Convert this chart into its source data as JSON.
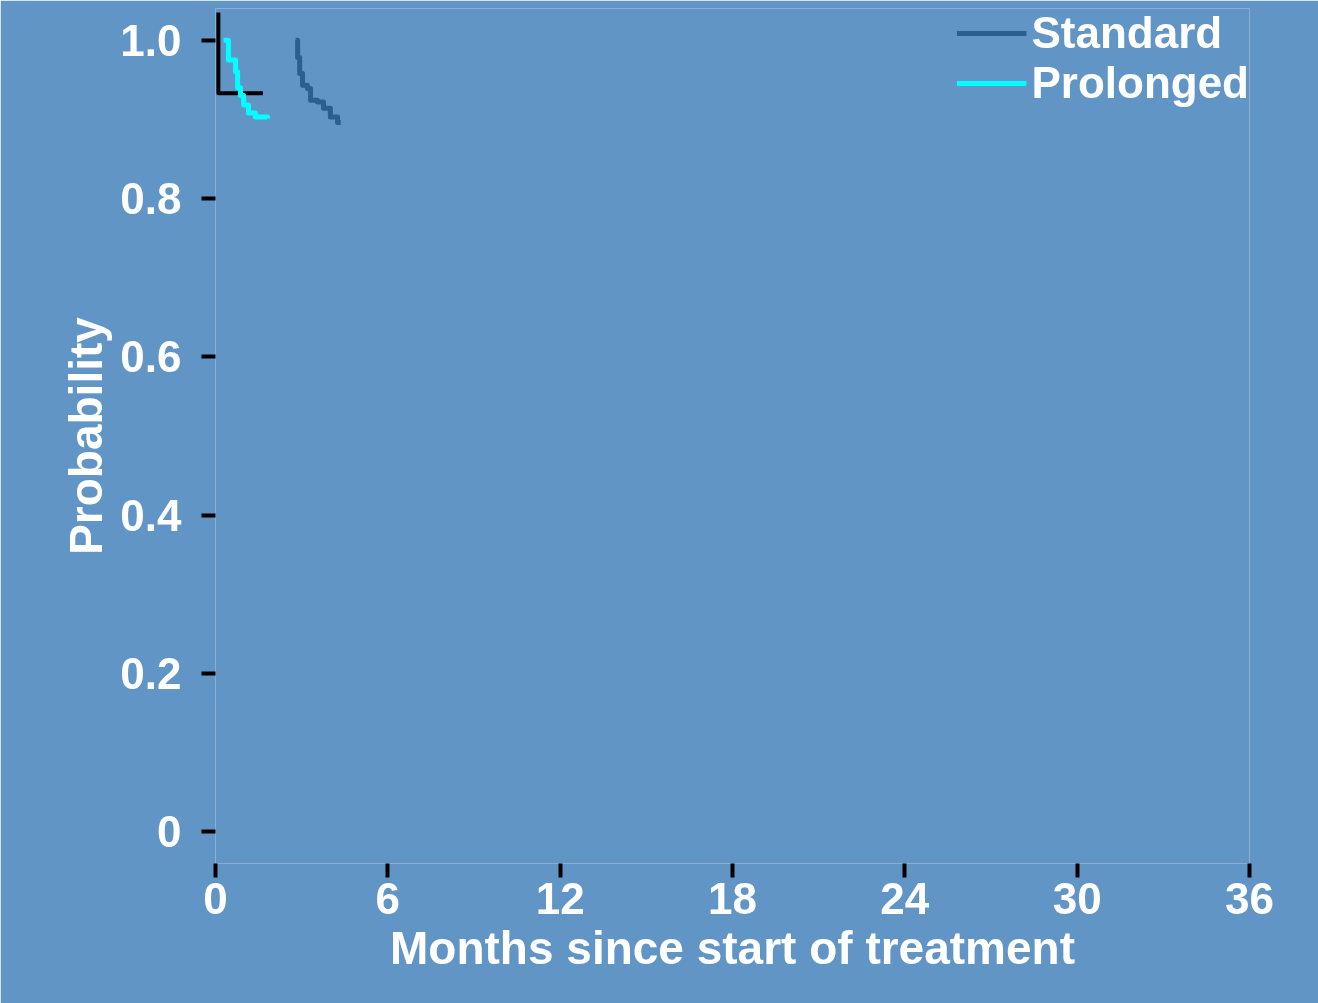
{
  "chart_data": {
    "type": "step",
    "xlabel": "Months since start of treatment",
    "ylabel": "Probability",
    "xlim": [
      0,
      36
    ],
    "xticks": [
      0,
      6,
      12,
      18,
      24,
      30,
      36
    ],
    "ylim": [
      -0.04,
      1.04
    ],
    "yticks": [
      {
        "value": 0,
        "label": "0"
      },
      0.2,
      0.4,
      0.6,
      0.8,
      {
        "value": 1,
        "label": "1.0"
      }
    ],
    "grid": false,
    "legend": "top right",
    "marker": "none",
    "line_style": "solid",
    "series": [
      {
        "name": "Standard",
        "color": "#2a5f8f",
        "x": [
          2.79,
          2.86,
          2.93,
          3.03,
          3.2,
          3.31,
          3.55,
          3.76,
          4.0,
          4.25,
          4.36
        ],
        "values": [
          1.0,
          0.978,
          0.958,
          0.943,
          0.939,
          0.924,
          0.922,
          0.914,
          0.903,
          0.896,
          0.896
        ]
      },
      {
        "type": "line",
        "color": "#000000",
        "x": [
          0.1,
          0.1,
          1.65
        ],
        "values": [
          1.035,
          0.933,
          0.933
        ]
      },
      {
        "name": "Prolonged",
        "color": "#00ffff",
        "x": [
          0.28,
          0.45,
          0.7,
          0.77,
          0.87,
          0.98,
          1.15,
          1.39,
          1.81
        ],
        "values": [
          1.0,
          0.975,
          0.96,
          0.94,
          0.93,
          0.918,
          0.908,
          0.903,
          0.901
        ]
      }
    ]
  }
}
